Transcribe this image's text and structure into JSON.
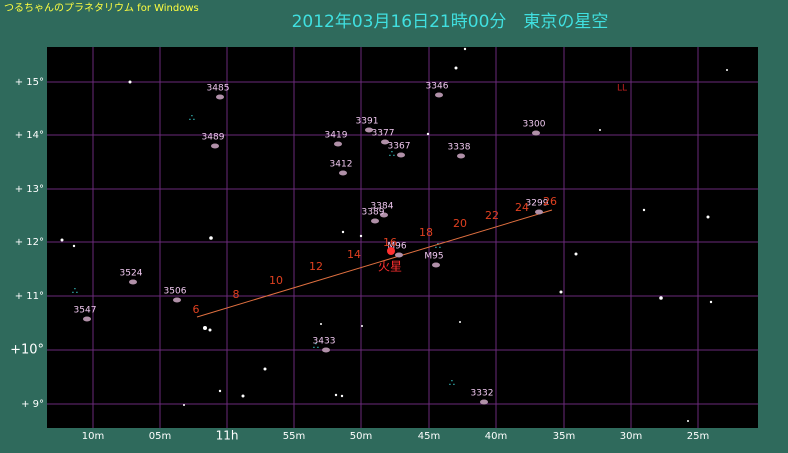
{
  "window": {
    "title": "つるちゃんのプラネタリウム for Windows"
  },
  "header": {
    "title": "2012年03月16日21時00分　東京の星空"
  },
  "dec_labels": [
    "+ 15°",
    "+ 14°",
    "+ 13°",
    "+ 12°",
    "+ 11°",
    "+10°",
    "+ 9°"
  ],
  "ra_labels": [
    "10m",
    "05m",
    "11h",
    "55m",
    "50m",
    "45m",
    "40m",
    "35m",
    "30m",
    "25m"
  ],
  "objects": [
    "3485",
    "3346",
    "LL",
    "3391",
    "3419",
    "3377",
    "3367",
    "3338",
    "3300",
    "3489",
    "3412",
    "3384",
    "3389",
    "M96",
    "M95",
    "3299",
    "3524",
    "3506",
    "3547",
    "3433",
    "3332"
  ],
  "planet": {
    "label": "火星"
  },
  "track_labels": [
    "6",
    "8",
    "10",
    "12",
    "14",
    "16",
    "18",
    "20",
    "22",
    "24",
    "26"
  ]
}
